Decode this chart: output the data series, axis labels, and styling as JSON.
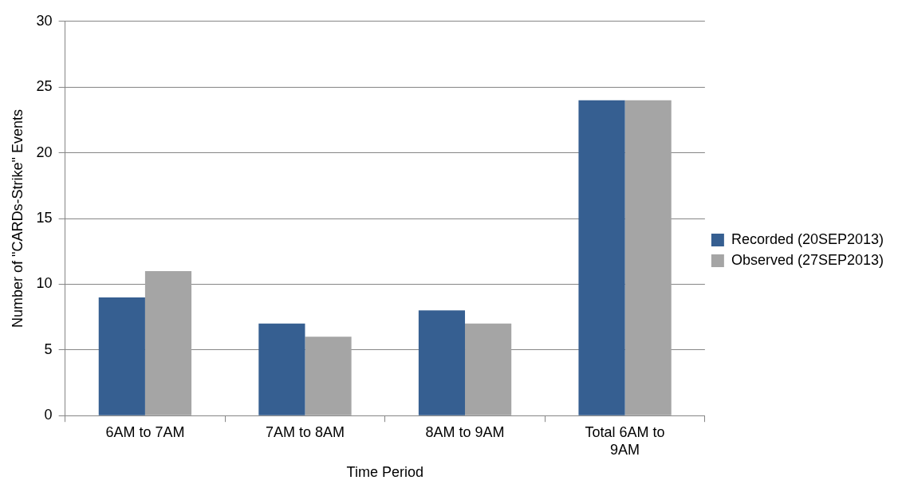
{
  "chart_data": {
    "type": "bar",
    "xlabel": "Time Period",
    "ylabel": "Number of \"CARDs-Strike\" Events",
    "categories": [
      "6AM to 7AM",
      "7AM to 8AM",
      "8AM to 9AM",
      "Total 6AM to 9AM"
    ],
    "series": [
      {
        "name": "Recorded (20SEP2013)",
        "color": "#365f91",
        "values": [
          9,
          7,
          8,
          24
        ]
      },
      {
        "name": "Observed (27SEP2013)",
        "color": "#a5a5a5",
        "values": [
          11,
          6,
          7,
          24
        ]
      }
    ],
    "ylim": [
      0,
      30
    ],
    "yticks": [
      0,
      5,
      10,
      15,
      20,
      25,
      30
    ],
    "grid": "y",
    "legend": "right"
  }
}
